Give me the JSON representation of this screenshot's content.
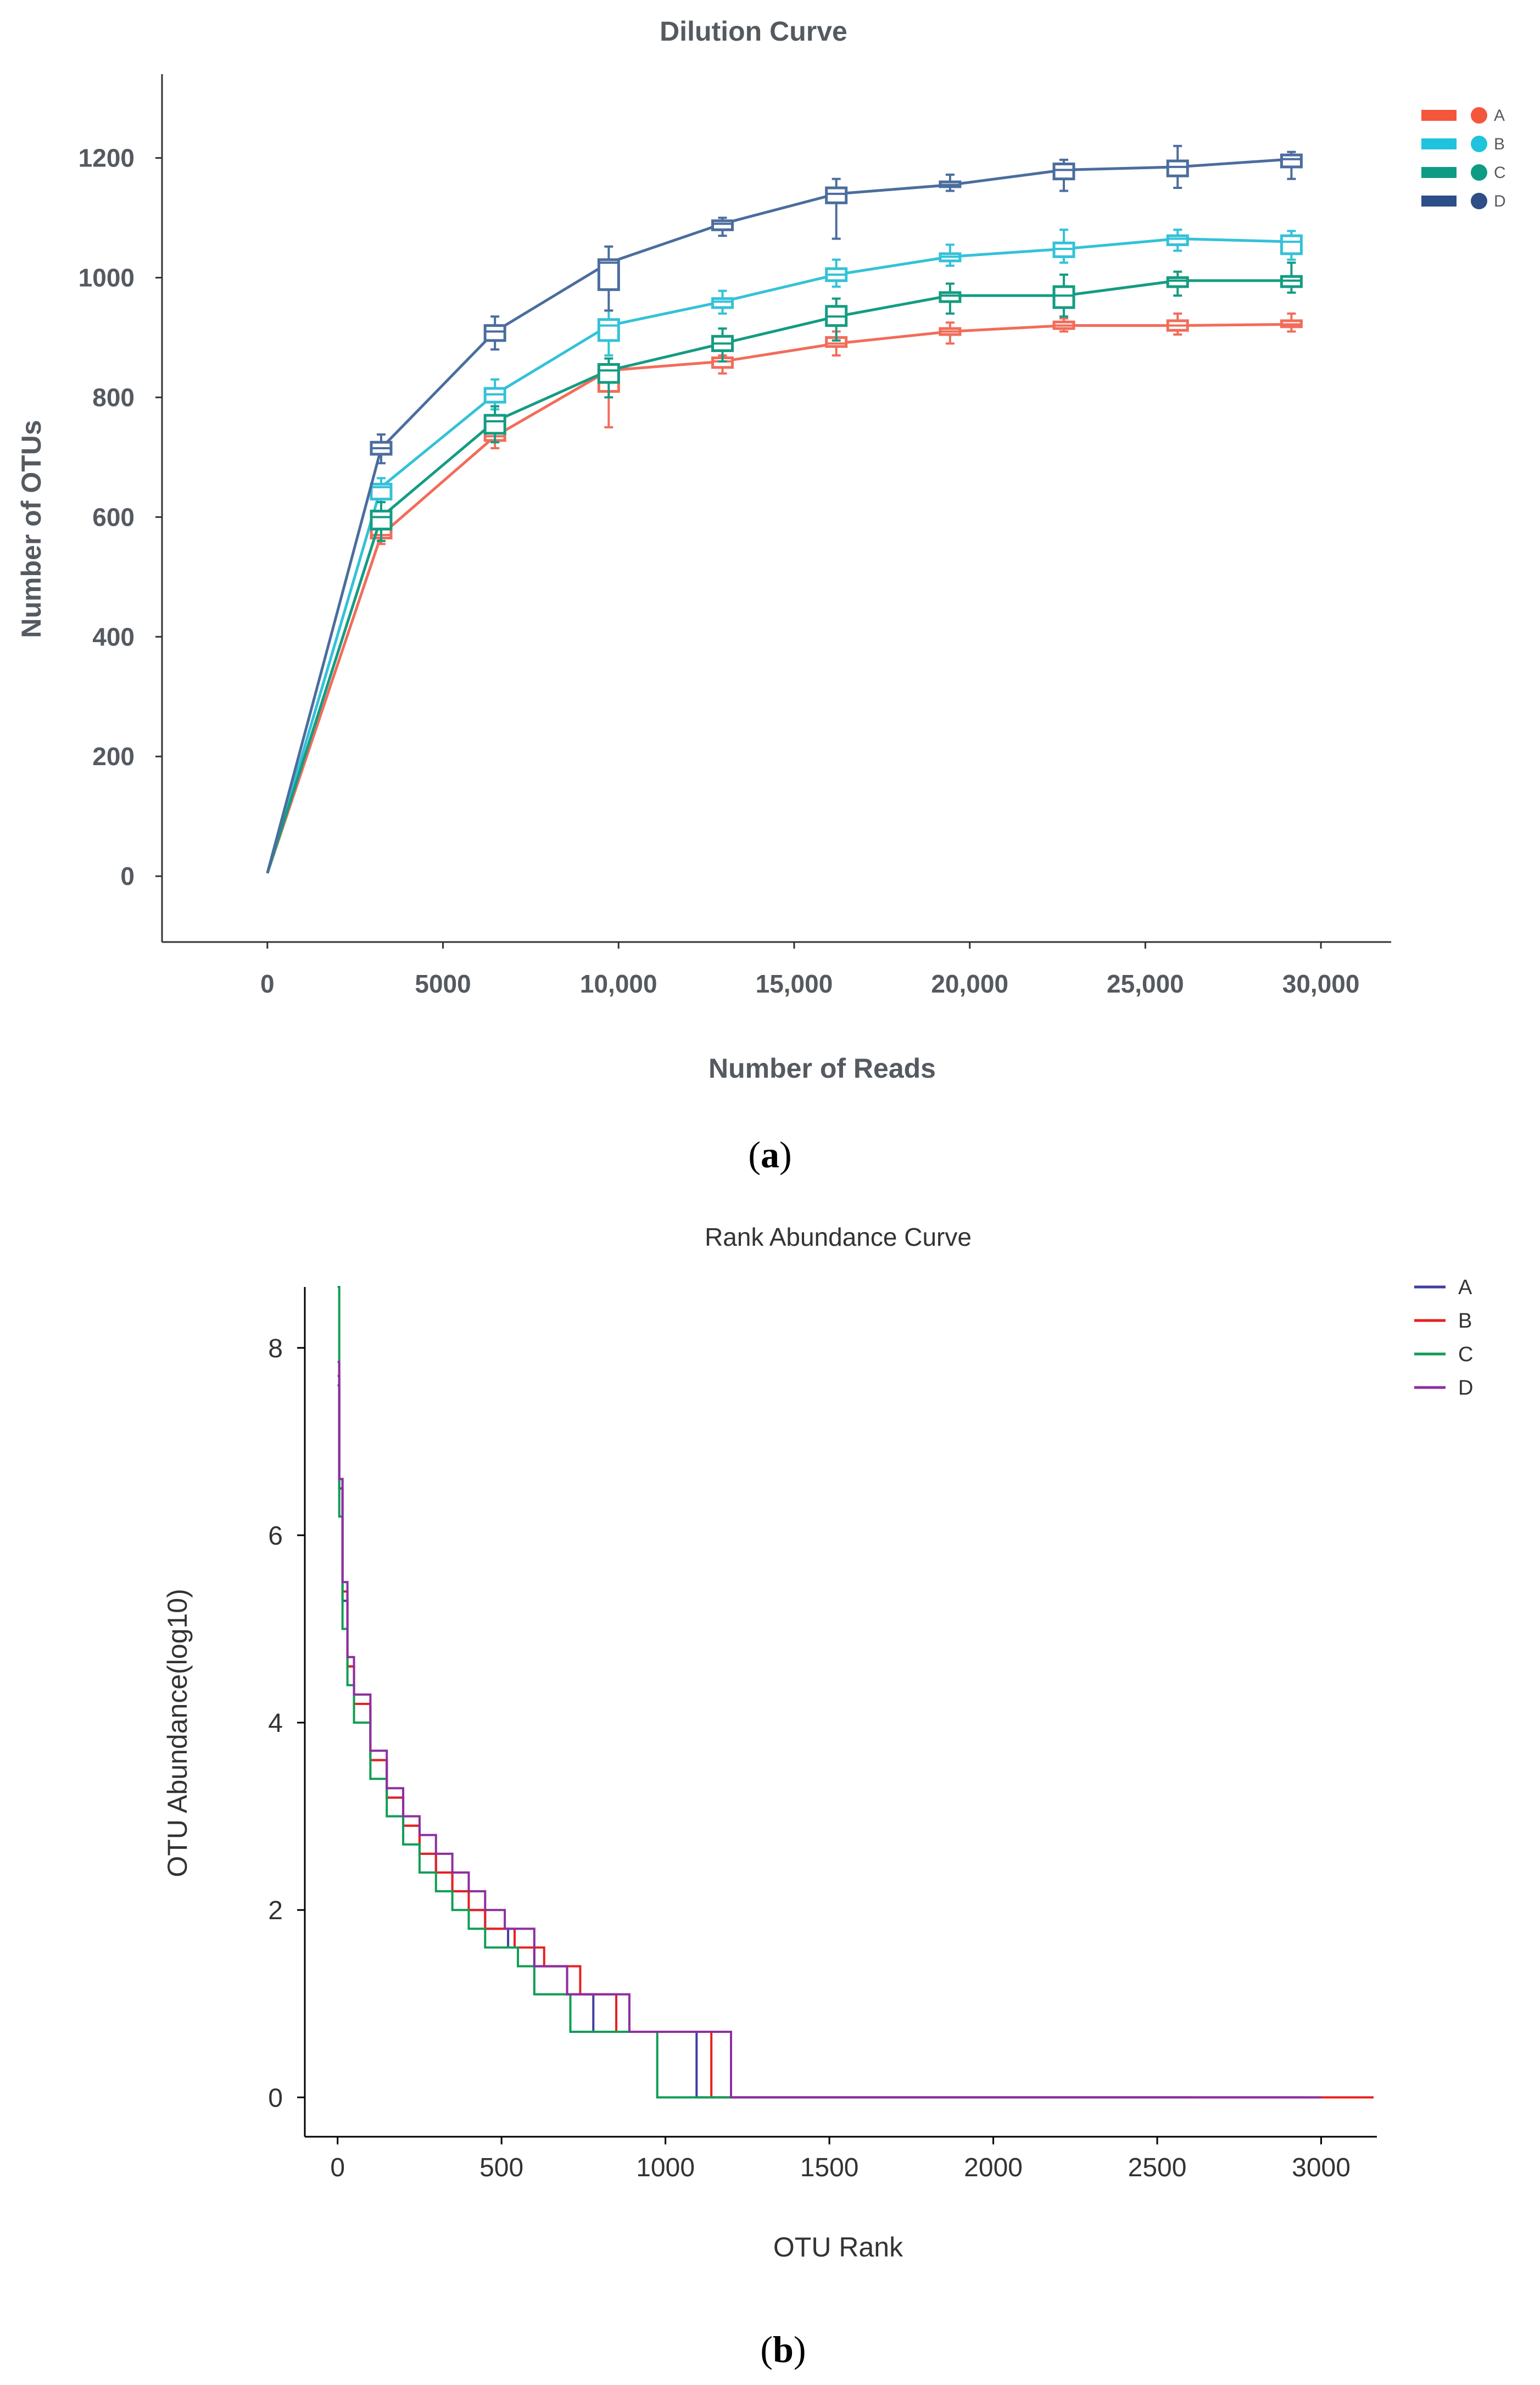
{
  "chart_data": [
    {
      "type": "line",
      "subtype": "line-with-boxplots",
      "title": "Dilution Curve",
      "xlabel": "Number of Reads",
      "ylabel": "Number of OTUs",
      "xlim": [
        -3000,
        32000
      ],
      "ylim": [
        -110,
        1340
      ],
      "xticks": [
        0,
        5000,
        10000,
        15000,
        20000,
        25000,
        30000
      ],
      "xtick_labels": [
        "0",
        "5000",
        "10,000",
        "15,000",
        "20,000",
        "25,000",
        "30,000"
      ],
      "yticks": [
        0,
        200,
        400,
        600,
        800,
        1000,
        1200
      ],
      "ytick_labels": [
        "0",
        "200",
        "400",
        "600",
        "800",
        "1000",
        "1200"
      ],
      "legend_position": "top-right",
      "caption": "a",
      "x": [
        0,
        3240,
        6480,
        9720,
        12960,
        16200,
        19440,
        22680,
        25920,
        29160
      ],
      "series": [
        {
          "name": "A",
          "color": "#f26c5a",
          "legend_color": "#f4563b",
          "values": [
            5,
            570,
            735,
            845,
            860,
            890,
            910,
            920,
            920,
            922
          ],
          "q1": [
            5,
            565,
            728,
            810,
            850,
            885,
            905,
            915,
            912,
            918
          ],
          "q3": [
            5,
            580,
            742,
            850,
            866,
            900,
            915,
            926,
            928,
            928
          ],
          "low": [
            5,
            555,
            715,
            750,
            840,
            870,
            890,
            910,
            905,
            910
          ],
          "high": [
            5,
            590,
            750,
            855,
            870,
            910,
            925,
            932,
            940,
            940
          ]
        },
        {
          "name": "B",
          "color": "#33c2d8",
          "legend_color": "#1fc3dd",
          "values": [
            5,
            650,
            805,
            920,
            960,
            1005,
            1035,
            1048,
            1065,
            1060
          ],
          "q1": [
            5,
            630,
            792,
            895,
            950,
            995,
            1028,
            1035,
            1055,
            1040
          ],
          "q3": [
            5,
            655,
            815,
            930,
            965,
            1015,
            1040,
            1058,
            1070,
            1070
          ],
          "low": [
            5,
            610,
            780,
            870,
            940,
            985,
            1020,
            1025,
            1045,
            1030
          ],
          "high": [
            5,
            665,
            830,
            945,
            978,
            1030,
            1055,
            1080,
            1080,
            1078
          ]
        },
        {
          "name": "C",
          "color": "#149c82",
          "legend_color": "#0d9c83",
          "values": [
            5,
            600,
            760,
            845,
            890,
            935,
            970,
            970,
            995,
            995
          ],
          "q1": [
            5,
            580,
            740,
            825,
            878,
            920,
            960,
            950,
            985,
            985
          ],
          "q3": [
            5,
            610,
            770,
            855,
            902,
            952,
            975,
            985,
            1000,
            1002
          ],
          "low": [
            5,
            560,
            725,
            800,
            860,
            895,
            940,
            935,
            970,
            975
          ],
          "high": [
            5,
            625,
            785,
            865,
            915,
            965,
            990,
            1005,
            1010,
            1025
          ]
        },
        {
          "name": "D",
          "color": "#4b6d9e",
          "legend_color": "#2d4e87",
          "values": [
            5,
            715,
            910,
            1025,
            1090,
            1140,
            1155,
            1180,
            1185,
            1198
          ],
          "q1": [
            5,
            705,
            895,
            980,
            1080,
            1125,
            1152,
            1165,
            1170,
            1185
          ],
          "q3": [
            5,
            725,
            920,
            1030,
            1095,
            1150,
            1160,
            1190,
            1195,
            1205
          ],
          "low": [
            5,
            690,
            880,
            945,
            1070,
            1065,
            1145,
            1145,
            1150,
            1165
          ],
          "high": [
            5,
            738,
            935,
            1052,
            1100,
            1165,
            1172,
            1197,
            1220,
            1210
          ]
        }
      ]
    },
    {
      "type": "line",
      "subtype": "step",
      "title": "Rank Abundance Curve",
      "xlabel": "OTU Rank",
      "ylabel": "OTU Abundance(log10)",
      "xlim": [
        -100,
        3170
      ],
      "ylim": [
        -0.42,
        8.65
      ],
      "xticks": [
        0,
        500,
        1000,
        1500,
        2000,
        2500,
        3000
      ],
      "xtick_labels": [
        "0",
        "500",
        "1000",
        "1500",
        "2000",
        "2500",
        "3000"
      ],
      "yticks": [
        0,
        2,
        4,
        6,
        8
      ],
      "ytick_labels": [
        "0",
        "2",
        "4",
        "6",
        "8"
      ],
      "legend_position": "top-right",
      "caption": "b",
      "series": [
        {
          "name": "A",
          "color": "#3f3f9e",
          "points": [
            [
              0,
              7.6
            ],
            [
              5,
              6.5
            ],
            [
              15,
              5.3
            ],
            [
              30,
              4.6
            ],
            [
              50,
              4.2
            ],
            [
              100,
              3.6
            ],
            [
              150,
              3.2
            ],
            [
              200,
              2.9
            ],
            [
              250,
              2.6
            ],
            [
              300,
              2.4
            ],
            [
              350,
              2.2
            ],
            [
              400,
              2.0
            ],
            [
              450,
              1.8
            ],
            [
              520,
              1.6
            ],
            [
              600,
              1.4
            ],
            [
              700,
              1.1
            ],
            [
              780,
              0.7
            ],
            [
              1095,
              0.0
            ],
            [
              2950,
              0.0
            ]
          ]
        },
        {
          "name": "B",
          "color": "#e8201f",
          "points": [
            [
              0,
              7.7
            ],
            [
              5,
              6.6
            ],
            [
              15,
              5.4
            ],
            [
              30,
              4.6
            ],
            [
              50,
              4.2
            ],
            [
              100,
              3.6
            ],
            [
              150,
              3.2
            ],
            [
              200,
              2.9
            ],
            [
              250,
              2.6
            ],
            [
              300,
              2.4
            ],
            [
              350,
              2.2
            ],
            [
              400,
              2.0
            ],
            [
              450,
              1.8
            ],
            [
              540,
              1.6
            ],
            [
              630,
              1.4
            ],
            [
              740,
              1.1
            ],
            [
              850,
              0.7
            ],
            [
              1140,
              0.0
            ],
            [
              3160,
              0.0
            ]
          ]
        },
        {
          "name": "C",
          "color": "#119d55",
          "points": [
            [
              0,
              8.65
            ],
            [
              5,
              6.2
            ],
            [
              15,
              5.0
            ],
            [
              30,
              4.4
            ],
            [
              50,
              4.0
            ],
            [
              100,
              3.4
            ],
            [
              150,
              3.0
            ],
            [
              200,
              2.7
            ],
            [
              250,
              2.4
            ],
            [
              300,
              2.2
            ],
            [
              350,
              2.0
            ],
            [
              400,
              1.8
            ],
            [
              450,
              1.6
            ],
            [
              550,
              1.4
            ],
            [
              600,
              1.1
            ],
            [
              710,
              0.7
            ],
            [
              975,
              0.0
            ],
            [
              2600,
              0.0
            ]
          ]
        },
        {
          "name": "D",
          "color": "#8d2fa0",
          "points": [
            [
              0,
              7.85
            ],
            [
              5,
              6.6
            ],
            [
              15,
              5.5
            ],
            [
              30,
              4.7
            ],
            [
              50,
              4.3
            ],
            [
              100,
              3.7
            ],
            [
              150,
              3.3
            ],
            [
              200,
              3.0
            ],
            [
              250,
              2.8
            ],
            [
              300,
              2.6
            ],
            [
              350,
              2.4
            ],
            [
              400,
              2.2
            ],
            [
              450,
              2.0
            ],
            [
              510,
              1.8
            ],
            [
              600,
              1.4
            ],
            [
              700,
              1.1
            ],
            [
              890,
              0.7
            ],
            [
              1200,
              0.0
            ],
            [
              3000,
              0.0
            ]
          ]
        }
      ]
    }
  ]
}
